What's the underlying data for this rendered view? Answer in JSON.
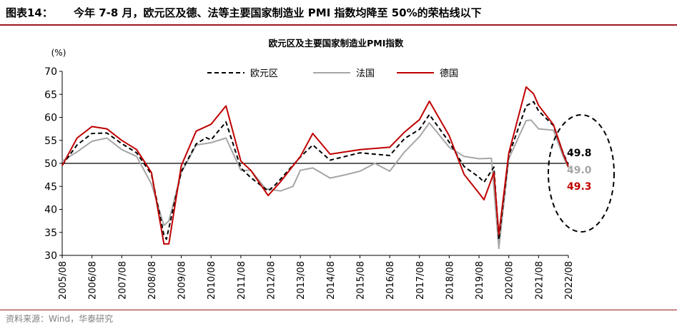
{
  "header": {
    "figure_label": "图表14：",
    "title": "今年 7-8 月，欧元区及德、法等主要国家制造业 PMI 指数均降至 50%的荣枯线以下"
  },
  "footer": {
    "source": "资料来源：Wind，华泰研究"
  },
  "colors": {
    "brand_rule": "#9d1b1f",
    "eurozone": "#000000",
    "france": "#a6a6a6",
    "germany": "#c00000"
  },
  "chart_data": {
    "type": "line",
    "title": "欧元区及主要国家制造业PMI指数",
    "ylabel": "(%)",
    "ylim": [
      30,
      70
    ],
    "yticks": [
      30,
      35,
      40,
      45,
      50,
      55,
      60,
      65,
      70
    ],
    "reference_line": 50,
    "x_start": "2005/08",
    "x_end": "2022/08",
    "xticks": [
      "2005/08",
      "2006/08",
      "2007/08",
      "2008/08",
      "2009/08",
      "2010/08",
      "2011/08",
      "2012/08",
      "2013/08",
      "2014/08",
      "2015/08",
      "2016/08",
      "2017/08",
      "2018/08",
      "2019/08",
      "2020/08",
      "2021/08",
      "2022/08"
    ],
    "legend_position": "top-center",
    "series": [
      {
        "name": "欧元区",
        "style": "dashed",
        "color": "#000000",
        "end_label": "49.8",
        "points": [
          [
            "2005/08",
            49.6
          ],
          [
            "2006/02",
            54.0
          ],
          [
            "2006/08",
            56.5
          ],
          [
            "2007/02",
            56.6
          ],
          [
            "2007/08",
            54.3
          ],
          [
            "2008/02",
            52.3
          ],
          [
            "2008/08",
            47.6
          ],
          [
            "2009/01",
            34.4
          ],
          [
            "2009/02",
            33.5
          ],
          [
            "2009/08",
            48.2
          ],
          [
            "2010/02",
            54.2
          ],
          [
            "2010/06",
            55.6
          ],
          [
            "2010/08",
            55.1
          ],
          [
            "2011/02",
            59.0
          ],
          [
            "2011/08",
            49.0
          ],
          [
            "2011/12",
            46.9
          ],
          [
            "2012/07",
            44.0
          ],
          [
            "2012/10",
            45.4
          ],
          [
            "2013/08",
            51.4
          ],
          [
            "2014/01",
            54.0
          ],
          [
            "2014/08",
            50.7
          ],
          [
            "2015/08",
            52.3
          ],
          [
            "2016/08",
            51.7
          ],
          [
            "2017/02",
            55.4
          ],
          [
            "2017/08",
            57.4
          ],
          [
            "2017/12",
            60.6
          ],
          [
            "2018/08",
            54.6
          ],
          [
            "2019/02",
            49.3
          ],
          [
            "2019/08",
            47.0
          ],
          [
            "2019/10",
            45.9
          ],
          [
            "2020/02",
            49.2
          ],
          [
            "2020/04",
            33.4
          ],
          [
            "2020/08",
            51.7
          ],
          [
            "2021/03",
            62.5
          ],
          [
            "2021/06",
            63.4
          ],
          [
            "2021/08",
            61.4
          ],
          [
            "2022/02",
            58.2
          ],
          [
            "2022/06",
            52.1
          ],
          [
            "2022/08",
            49.8
          ]
        ]
      },
      {
        "name": "法国",
        "style": "solid",
        "color": "#a6a6a6",
        "end_label": "49.0",
        "points": [
          [
            "2005/08",
            50.5
          ],
          [
            "2006/02",
            52.5
          ],
          [
            "2006/08",
            54.8
          ],
          [
            "2007/02",
            55.5
          ],
          [
            "2007/08",
            53.0
          ],
          [
            "2008/02",
            51.5
          ],
          [
            "2008/08",
            45.5
          ],
          [
            "2009/01",
            36.5
          ],
          [
            "2009/03",
            37.5
          ],
          [
            "2009/08",
            48.0
          ],
          [
            "2010/02",
            54.0
          ],
          [
            "2010/08",
            54.5
          ],
          [
            "2011/02",
            55.5
          ],
          [
            "2011/08",
            48.5
          ],
          [
            "2011/12",
            48.5
          ],
          [
            "2012/06",
            44.5
          ],
          [
            "2012/12",
            44.0
          ],
          [
            "2013/05",
            45.0
          ],
          [
            "2013/08",
            48.5
          ],
          [
            "2014/01",
            49.0
          ],
          [
            "2014/08",
            46.8
          ],
          [
            "2015/02",
            47.5
          ],
          [
            "2015/08",
            48.3
          ],
          [
            "2016/02",
            50.0
          ],
          [
            "2016/08",
            48.3
          ],
          [
            "2017/02",
            52.5
          ],
          [
            "2017/08",
            55.8
          ],
          [
            "2017/12",
            58.8
          ],
          [
            "2018/08",
            53.5
          ],
          [
            "2019/02",
            51.5
          ],
          [
            "2019/08",
            51.0
          ],
          [
            "2020/01",
            51.1
          ],
          [
            "2020/04",
            31.5
          ],
          [
            "2020/08",
            51.0
          ],
          [
            "2021/03",
            59.3
          ],
          [
            "2021/05",
            59.4
          ],
          [
            "2021/08",
            57.5
          ],
          [
            "2022/02",
            57.2
          ],
          [
            "2022/06",
            51.4
          ],
          [
            "2022/08",
            49.0
          ]
        ]
      },
      {
        "name": "德国",
        "style": "solid",
        "color": "#c00000",
        "end_label": "49.3",
        "points": [
          [
            "2005/08",
            49.5
          ],
          [
            "2006/02",
            55.5
          ],
          [
            "2006/08",
            58.0
          ],
          [
            "2007/02",
            57.5
          ],
          [
            "2007/08",
            55.0
          ],
          [
            "2008/02",
            53.0
          ],
          [
            "2008/08",
            48.0
          ],
          [
            "2009/01",
            32.5
          ],
          [
            "2009/03",
            32.5
          ],
          [
            "2009/08",
            49.5
          ],
          [
            "2010/02",
            57.0
          ],
          [
            "2010/08",
            58.5
          ],
          [
            "2011/02",
            62.5
          ],
          [
            "2011/08",
            50.5
          ],
          [
            "2011/12",
            48.5
          ],
          [
            "2012/07",
            43.0
          ],
          [
            "2012/12",
            46.0
          ],
          [
            "2013/08",
            51.5
          ],
          [
            "2014/01",
            56.5
          ],
          [
            "2014/08",
            52.0
          ],
          [
            "2015/08",
            53.0
          ],
          [
            "2016/08",
            53.5
          ],
          [
            "2017/02",
            56.8
          ],
          [
            "2017/08",
            59.5
          ],
          [
            "2017/12",
            63.5
          ],
          [
            "2018/08",
            56.0
          ],
          [
            "2019/02",
            47.6
          ],
          [
            "2019/08",
            43.5
          ],
          [
            "2019/10",
            42.1
          ],
          [
            "2020/02",
            48.0
          ],
          [
            "2020/04",
            34.5
          ],
          [
            "2020/08",
            52.2
          ],
          [
            "2021/03",
            66.6
          ],
          [
            "2021/06",
            65.1
          ],
          [
            "2021/08",
            62.6
          ],
          [
            "2022/02",
            58.4
          ],
          [
            "2022/06",
            52.0
          ],
          [
            "2022/08",
            49.3
          ]
        ]
      }
    ]
  }
}
